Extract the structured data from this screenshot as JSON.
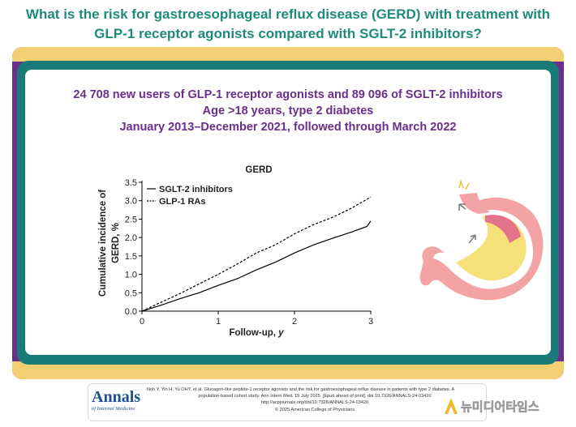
{
  "header": {
    "title_line1": "What is the risk for gastroesophageal reflux disease (GERD) with treatment with",
    "title_line2": "GLP-1 receptor agonists compared with SGLT-2 inhibitors?"
  },
  "panel": {
    "line1": "24 708 new users of GLP-1 receptor agonists and 89 096 of SGLT-2 inhibitors",
    "line2": "Age >18 years, type 2 diabetes",
    "line3": "January 2013–December 2021, followed through March 2022"
  },
  "chart_data": {
    "type": "line",
    "title": "GERD",
    "xlabel": "Follow-up, y",
    "ylabel": "Cumulative incidence of GERD, %",
    "xlim": [
      0,
      3
    ],
    "ylim": [
      0,
      3.5
    ],
    "xticks": [
      0,
      1,
      2,
      3
    ],
    "yticks": [
      0.0,
      0.5,
      1.0,
      1.5,
      2.0,
      2.5,
      3.0,
      3.5
    ],
    "ytick_labels": [
      "0.0",
      "0.5",
      "1.0",
      "1.5",
      "2.0",
      "2.5",
      "3.0",
      "3.5"
    ],
    "xtick_labels": [
      "0",
      "1",
      "2",
      "3"
    ],
    "grid": false,
    "legend_position": "top-left",
    "series": [
      {
        "name": "SGLT-2 inhibitors",
        "style": "solid",
        "color": "#000000",
        "x": [
          0,
          0.25,
          0.5,
          0.75,
          1.0,
          1.25,
          1.5,
          1.75,
          2.0,
          2.25,
          2.5,
          2.75,
          2.95,
          3.0
        ],
        "y": [
          0,
          0.16,
          0.34,
          0.5,
          0.7,
          0.88,
          1.12,
          1.33,
          1.58,
          1.8,
          1.98,
          2.15,
          2.3,
          2.45
        ]
      },
      {
        "name": "GLP-1 RAs",
        "style": "dashed",
        "color": "#000000",
        "x": [
          0,
          0.25,
          0.5,
          0.75,
          1.0,
          1.25,
          1.5,
          1.75,
          2.0,
          2.25,
          2.5,
          2.75,
          3.0
        ],
        "y": [
          0,
          0.24,
          0.48,
          0.74,
          1.0,
          1.28,
          1.58,
          1.8,
          2.1,
          2.35,
          2.55,
          2.8,
          3.1
        ]
      }
    ]
  },
  "footer": {
    "logo_main": "Annals",
    "logo_sub": "of Internal Medicine",
    "citation_line1": "Noh Y, Yin H, Yu OHY, et al. Glucagon-like peptide-1 receptor agonists and the risk for gastroesophageal reflux disease in patients with type 2 diabetes. A",
    "citation_line2": "population-based cohort study. Ann Intern Med. 15 July 2025. [Epub ahead of print]. doi:10.7326/ANNALS-24-03420",
    "citation_line3": "http://acpjournals.org/doi/10.7326/ANNALS-24-03420",
    "citation_line4": "© 2025 American College of Physicians",
    "watermark": "뉴미디어타임스"
  },
  "colors": {
    "title_teal": "#1f8a7a",
    "accent_purple": "#6a2f8c",
    "frame_teal": "#1a7a77",
    "band_gold": "#f3cf73"
  },
  "illustration": {
    "icon": "stomach-illustration"
  }
}
